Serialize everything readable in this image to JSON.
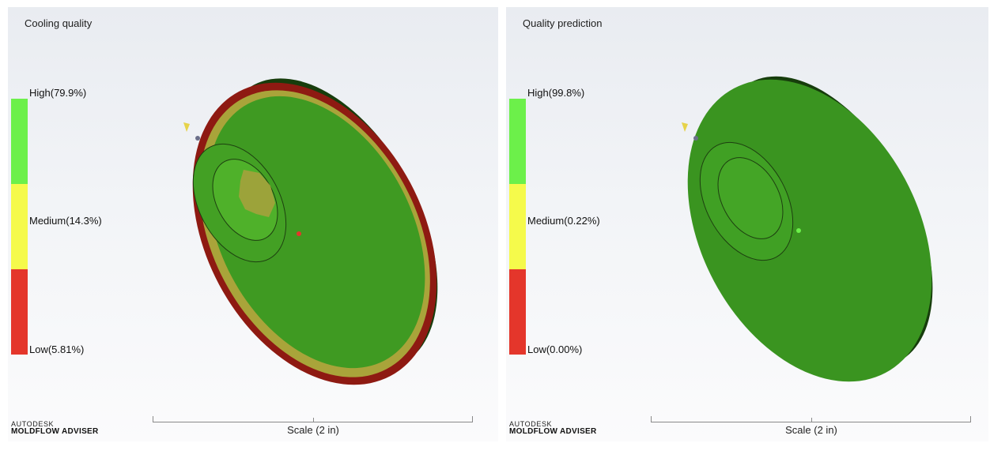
{
  "left_panel": {
    "title": "Cooling quality",
    "legend": {
      "high": "High(79.9%)",
      "medium": "Medium(14.3%)",
      "low": "Low(5.81%)"
    },
    "scale_label": "Scale (2 in)"
  },
  "right_panel": {
    "title": "Quality prediction",
    "legend": {
      "high": "High(99.8%)",
      "medium": "Medium(0.22%)",
      "low": "Low(0.00%)"
    },
    "scale_label": "Scale (2 in)"
  },
  "brand": {
    "top": "AUTODESK",
    "bottom": "MOLDFLOW ADVISER"
  },
  "colors": {
    "high": "#6cf04a",
    "medium": "#f5fa4b",
    "low": "#e4362b",
    "part_green": "#3f9a22",
    "part_dark": "#173d0c",
    "edge_red": "#8e1a12",
    "edge_tan": "#a9a43a"
  }
}
